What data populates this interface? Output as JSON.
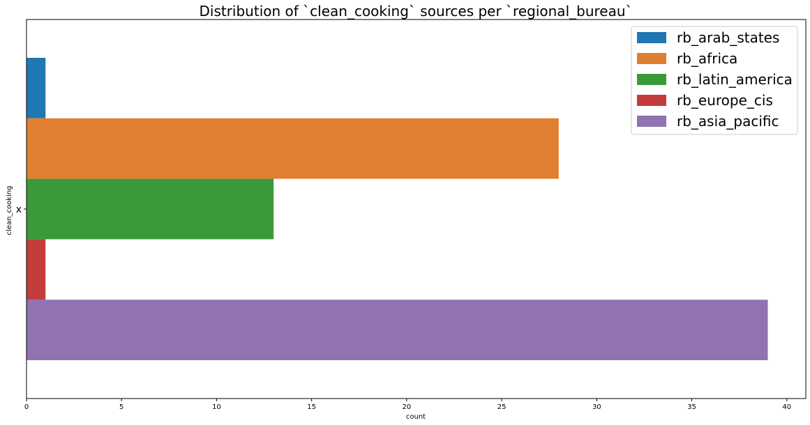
{
  "chart_data": {
    "type": "bar",
    "orientation": "horizontal",
    "title": "Distribution of `clean_cooking` sources per `regional_bureau`",
    "xlabel": "count",
    "ylabel": "clean_cooking",
    "categories": [
      "x"
    ],
    "xlim": [
      0,
      41
    ],
    "xticks": [
      0,
      5,
      10,
      15,
      20,
      25,
      30,
      35,
      40
    ],
    "grid": false,
    "legend_position": "top-right",
    "series": [
      {
        "name": "rb_arab_states",
        "values": [
          1
        ],
        "color": "#1f77b4"
      },
      {
        "name": "rb_africa",
        "values": [
          28
        ],
        "color": "#e07f2f"
      },
      {
        "name": "rb_latin_america",
        "values": [
          13
        ],
        "color": "#3a9a3a"
      },
      {
        "name": "rb_europe_cis",
        "values": [
          1
        ],
        "color": "#c43c3c"
      },
      {
        "name": "rb_asia_pacific",
        "values": [
          39
        ],
        "color": "#9073b0"
      }
    ]
  }
}
